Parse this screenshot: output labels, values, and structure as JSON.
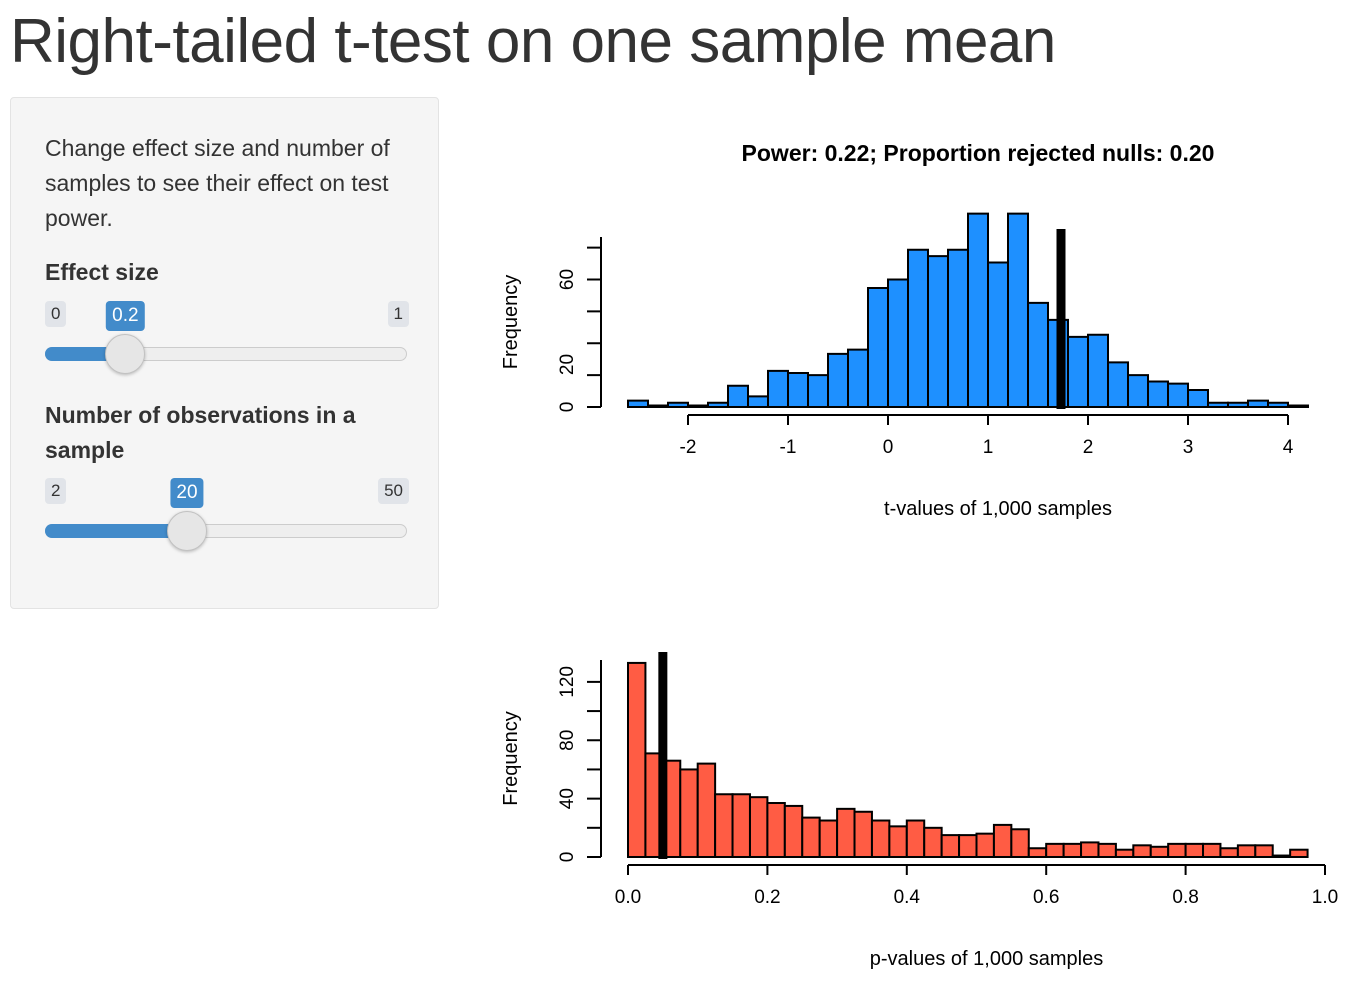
{
  "page": {
    "title": "Right-tailed t-test on one sample mean"
  },
  "sidebar": {
    "help_text": "Change effect size and number of samples to see their effect on test power.",
    "effect_size": {
      "label": "Effect size",
      "min": "0",
      "max": "1",
      "value": "0.2",
      "fraction": 0.2
    },
    "observations": {
      "label": "Number of observations in a sample",
      "min": "2",
      "max": "50",
      "value": "20",
      "fraction": 0.375
    }
  },
  "colors": {
    "accent": "#428bca",
    "t_bars": "#1e90ff",
    "p_bars": "#ff5c44"
  },
  "chart_data": [
    {
      "type": "bar",
      "title": "Power: 0.22; Proportion rejected nulls: 0.20",
      "xlabel": "t-values of 1,000 samples",
      "ylabel": "Frequency",
      "xlim": [
        -2.6,
        4.4
      ],
      "ylim": [
        0,
        80
      ],
      "xticks": [
        -2,
        -1,
        0,
        1,
        2,
        3,
        4
      ],
      "yticks": [
        0,
        20,
        60
      ],
      "bin_width": 0.2,
      "bin_start": -2.6,
      "values": [
        3,
        0,
        2,
        0,
        2,
        10,
        5,
        17,
        16,
        15,
        25,
        27,
        56,
        60,
        74,
        71,
        74,
        91,
        68,
        91,
        49,
        41,
        33,
        34,
        21,
        15,
        12,
        11,
        8,
        2,
        2,
        3,
        2,
        0
      ],
      "critical_line_x": 1.73,
      "bar_color": "#1e90ff"
    },
    {
      "type": "bar",
      "title": "",
      "xlabel": "p-values of 1,000 samples",
      "ylabel": "Frequency",
      "xlim": [
        0,
        1
      ],
      "ylim": [
        0,
        135
      ],
      "xticks": [
        "0.0",
        "0.2",
        "0.4",
        "0.6",
        "0.8",
        "1.0"
      ],
      "yticks": [
        0,
        40,
        80,
        120
      ],
      "bin_width": 0.025,
      "bin_start": 0,
      "values": [
        133,
        71,
        66,
        60,
        64,
        43,
        43,
        41,
        37,
        35,
        27,
        25,
        33,
        31,
        25,
        21,
        25,
        20,
        15,
        15,
        16,
        22,
        19,
        6,
        9,
        9,
        10,
        9,
        5,
        8,
        7,
        9,
        9,
        9,
        6,
        8,
        8,
        1,
        5
      ],
      "critical_line_x": 0.05,
      "bar_color": "#ff5c44"
    }
  ]
}
